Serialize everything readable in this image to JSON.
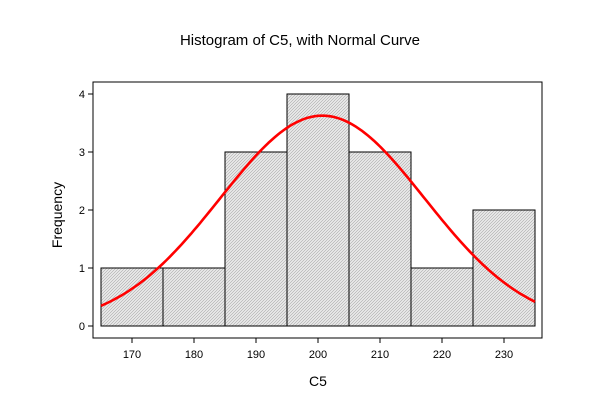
{
  "chart_data": {
    "type": "bar",
    "subtype": "histogram",
    "title": "Histogram of C5, with Normal Curve",
    "xlabel": "C5",
    "ylabel": "Frequency",
    "bins": [
      {
        "from": 165,
        "to": 175,
        "count": 1
      },
      {
        "from": 175,
        "to": 185,
        "count": 1
      },
      {
        "from": 185,
        "to": 195,
        "count": 3
      },
      {
        "from": 195,
        "to": 205,
        "count": 4
      },
      {
        "from": 205,
        "to": 215,
        "count": 3
      },
      {
        "from": 215,
        "to": 225,
        "count": 1
      },
      {
        "from": 225,
        "to": 235,
        "count": 2
      }
    ],
    "x_ticks": [
      170,
      180,
      190,
      200,
      210,
      220,
      230
    ],
    "y_ticks": [
      0,
      1,
      2,
      3,
      4
    ],
    "xlim": [
      165,
      235
    ],
    "ylim": [
      0,
      4.3
    ],
    "normal_curve": {
      "mean": 200.7,
      "sd": 16.5,
      "n": 15,
      "bin_width": 10,
      "color": "#ff0000"
    },
    "bar_fill": "#dcdcdc",
    "bar_stroke": "#000000",
    "grid": false,
    "legend": "none"
  }
}
